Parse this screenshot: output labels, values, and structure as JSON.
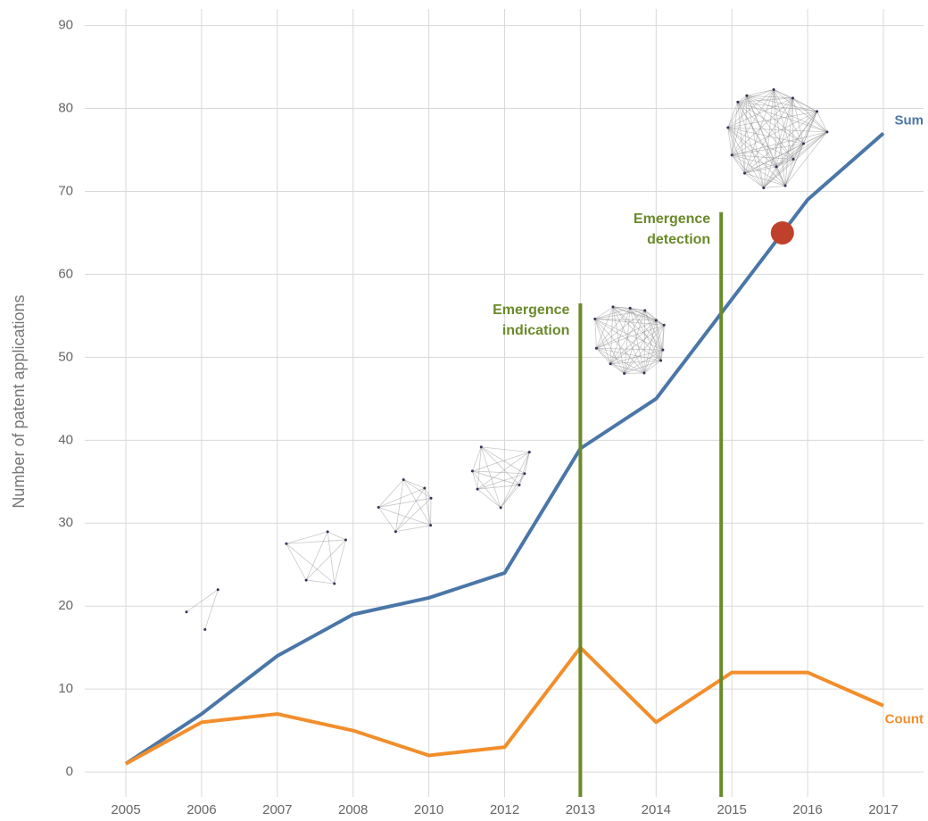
{
  "chart_data": {
    "type": "line",
    "y_axis_label": "Number of patent applications",
    "categories": [
      "2005",
      "2006",
      "2007",
      "2008",
      "2010",
      "2012",
      "2013",
      "2014",
      "2015",
      "2016",
      "2017"
    ],
    "series": [
      {
        "name": "Sum",
        "color": "#4a76a8",
        "values": [
          1,
          7,
          14,
          19,
          21,
          24,
          39,
          45,
          57,
          69,
          77
        ]
      },
      {
        "name": "Count",
        "color": "#f28e2b",
        "values": [
          1,
          6,
          7,
          5,
          2,
          3,
          15,
          6,
          12,
          12,
          8
        ]
      }
    ],
    "ylim": [
      -3,
      92
    ],
    "yticks": [
      0,
      10,
      20,
      30,
      40,
      50,
      60,
      70,
      80,
      90
    ],
    "grid": true,
    "annotations": [
      {
        "lines": [
          "Emergence",
          "indication"
        ],
        "x": "2013",
        "y": 56.5,
        "color": "#6a8a2a"
      },
      {
        "lines": [
          "Emergence",
          "detection"
        ],
        "x": "2015",
        "y": 67.5,
        "color": "#6a8a2a"
      }
    ],
    "highlight": {
      "series": "Sum",
      "value": 65,
      "color": "#c0412b"
    }
  }
}
